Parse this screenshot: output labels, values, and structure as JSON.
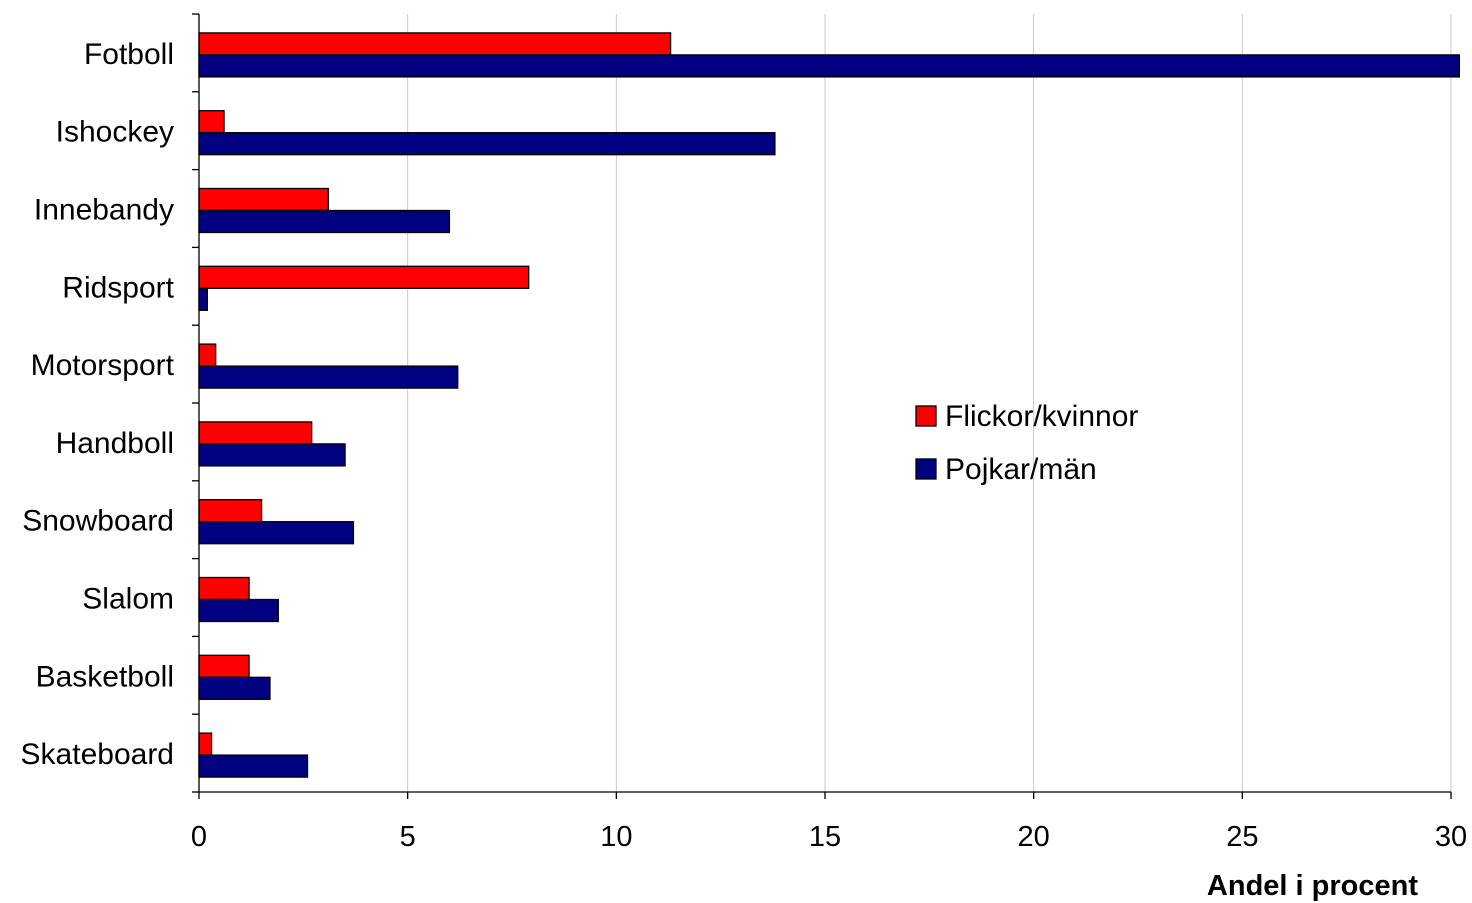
{
  "chart_data": {
    "type": "bar",
    "orientation": "horizontal",
    "categories": [
      "Fotboll",
      "Ishockey",
      "Innebandy",
      "Ridsport",
      "Motorsport",
      "Handboll",
      "Snowboard",
      "Slalom",
      "Basketboll",
      "Skateboard"
    ],
    "series": [
      {
        "name": "Flickor/kvinnor",
        "color": "#ff0000",
        "values": [
          11.3,
          0.6,
          3.1,
          7.9,
          0.4,
          2.7,
          1.5,
          1.2,
          1.2,
          0.3
        ]
      },
      {
        "name": "Pojkar/män",
        "color": "#000080",
        "values": [
          30.2,
          13.8,
          6.0,
          0.2,
          6.2,
          3.5,
          3.7,
          1.9,
          1.7,
          2.6
        ]
      }
    ],
    "xlabel": "Andel i procent",
    "ylabel": "",
    "xlim": [
      0,
      30
    ],
    "xticks": [
      0,
      5,
      10,
      15,
      20,
      25,
      30
    ],
    "grid": "vertical",
    "legend_position": "center-right"
  }
}
